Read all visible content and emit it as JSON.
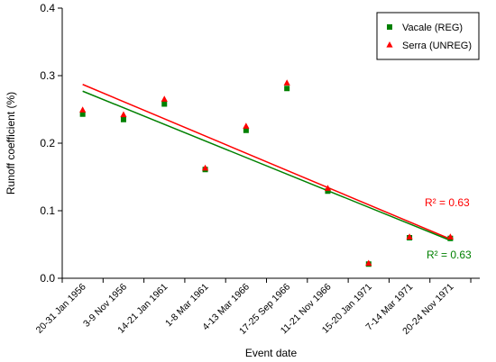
{
  "chart_data": {
    "type": "scatter",
    "xlabel": "Event date",
    "ylabel": "Runoff coefficient (%)",
    "categories": [
      "20-31 Jan 1956",
      "3-9 Nov 1956",
      "14-21 Jan 1961",
      "1-8 Mar 1961",
      "4-13 Mar 1966",
      "17-25 Sep 1966",
      "11-21 Nov 1966",
      "15-20 Jan 1971",
      "7-14 Mar 1971",
      "20-24 Nov 1971"
    ],
    "ylim": [
      0,
      0.4
    ],
    "yticks": [
      "0.0",
      "0.1",
      "0.2",
      "0.3",
      "0.4"
    ],
    "grid": false,
    "legend_position": "top-right",
    "series": [
      {
        "name": "Vacale (REG)",
        "marker": "square",
        "color": "#008000",
        "values": [
          0.243,
          0.235,
          0.258,
          0.161,
          0.219,
          0.281,
          0.129,
          0.021,
          0.06,
          0.059
        ],
        "trend": {
          "start": 0.277,
          "end": 0.056,
          "label": "R² = 0.63"
        }
      },
      {
        "name": "Serra (UNREG)",
        "marker": "triangle",
        "color": "#ff0000",
        "values": [
          0.249,
          0.242,
          0.265,
          0.163,
          0.225,
          0.289,
          0.133,
          0.022,
          0.061,
          0.061
        ],
        "trend": {
          "start": 0.287,
          "end": 0.058,
          "label": "R² = 0.63"
        }
      }
    ]
  }
}
